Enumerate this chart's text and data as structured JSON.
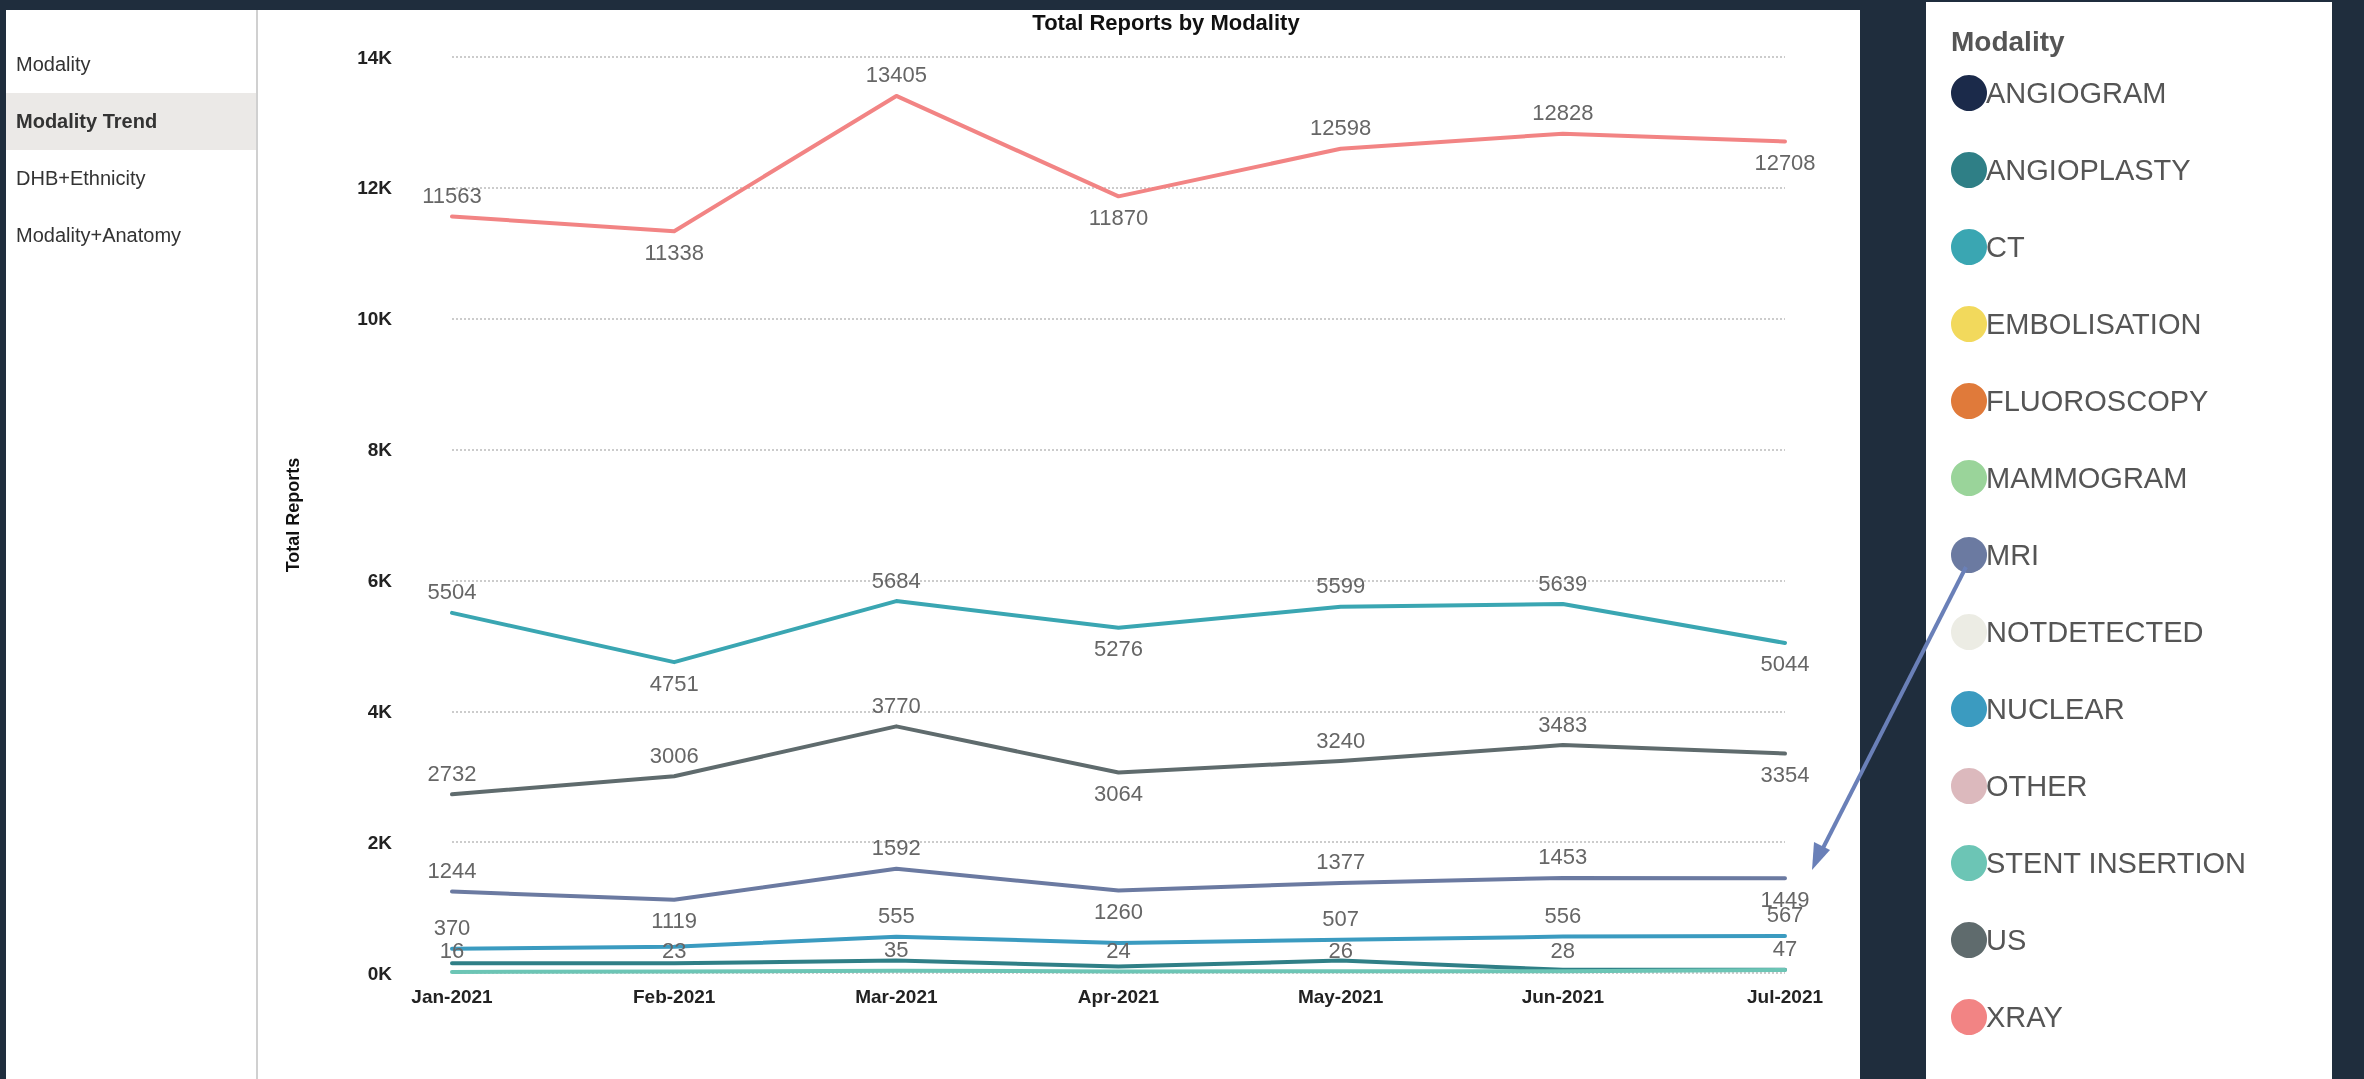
{
  "chart_data": {
    "type": "line",
    "title": "Total Reports by Modality",
    "ylabel": "Total Reports",
    "legend_title": "Modality",
    "annotations": [
      "Modality",
      "Modality Trend",
      "DHB+Ethnicity",
      "Modality+Anatomy"
    ],
    "categories": [
      "Jan-2021",
      "Feb-2021",
      "Mar-2021",
      "Apr-2021",
      "May-2021",
      "Jun-2021",
      "Jul-2021"
    ],
    "series": [
      {
        "name": "ANGIOGRAM",
        "color": "#1b2a4a",
        "values": [
          null,
          null,
          null,
          null,
          null,
          null,
          null
        ]
      },
      {
        "name": "ANGIOPLASTY",
        "color": "#2f7f86",
        "values": [
          150,
          150,
          190,
          100,
          190,
          50,
          50
        ]
      },
      {
        "name": "CT",
        "color": "#3aa6b2",
        "values": [
          5504,
          4751,
          5684,
          5276,
          5599,
          5639,
          5044
        ],
        "value_labels": [
          "5504",
          "4751",
          "5684",
          "5276",
          "5599",
          "5639",
          "5044"
        ]
      },
      {
        "name": "EMBOLISATION",
        "color": "#f2d95c",
        "values": [
          null,
          null,
          null,
          null,
          null,
          null,
          null
        ]
      },
      {
        "name": "FLUOROSCOPY",
        "color": "#e07a3a",
        "values": [
          null,
          null,
          null,
          null,
          null,
          null,
          null
        ]
      },
      {
        "name": "MAMMOGRAM",
        "color": "#9ad49a",
        "values": [
          null,
          null,
          null,
          null,
          null,
          null,
          null
        ]
      },
      {
        "name": "MRI",
        "color": "#6b7aa1",
        "values": [
          1244,
          1119,
          1592,
          1260,
          1377,
          1453,
          1449
        ],
        "value_labels": [
          "1244",
          "1119",
          "1592",
          "1260",
          "1377",
          "1453",
          "1449"
        ]
      },
      {
        "name": "NOTDETECTED",
        "color": "#ecece4",
        "values": [
          null,
          null,
          null,
          null,
          null,
          null,
          null
        ]
      },
      {
        "name": "NUCLEAR",
        "color": "#3b9bc0",
        "values": [
          370,
          400,
          555,
          460,
          507,
          556,
          567
        ],
        "value_labels": [
          "370",
          null,
          "555",
          null,
          "507",
          "556",
          "567"
        ]
      },
      {
        "name": "OTHER",
        "color": "#dcb9bd",
        "values": [
          null,
          null,
          null,
          null,
          null,
          null,
          null
        ]
      },
      {
        "name": "STENT INSERTION",
        "color": "#6cc5b5",
        "values": [
          16,
          23,
          35,
          24,
          26,
          28,
          47
        ],
        "value_labels": [
          "16",
          "23",
          "35",
          "24",
          "26",
          "28",
          "47"
        ]
      },
      {
        "name": "US",
        "color": "#5f6b6d",
        "values": [
          2732,
          3006,
          3770,
          3064,
          3240,
          3483,
          3354
        ],
        "value_labels": [
          "2732",
          "3006",
          "3770",
          "3064",
          "3240",
          "3483",
          "3354"
        ]
      },
      {
        "name": "XRAY",
        "color": "#f28484",
        "values": [
          11563,
          11338,
          13405,
          11870,
          12598,
          12828,
          12708
        ],
        "value_labels": [
          "11563",
          "11338",
          "13405",
          "11870",
          "12598",
          "12828",
          "12708"
        ]
      }
    ],
    "ylim": [
      0,
      14000
    ],
    "yticks": [
      {
        "value": 0,
        "label": "0K"
      },
      {
        "value": 2000,
        "label": "2K"
      },
      {
        "value": 4000,
        "label": "4K"
      },
      {
        "value": 6000,
        "label": "6K"
      },
      {
        "value": 8000,
        "label": "8K"
      },
      {
        "value": 10000,
        "label": "10K"
      },
      {
        "value": 12000,
        "label": "12K"
      },
      {
        "value": 14000,
        "label": "14K"
      }
    ],
    "grid": "y",
    "legend": "right",
    "marker": "none",
    "line_style": "solid"
  }
}
